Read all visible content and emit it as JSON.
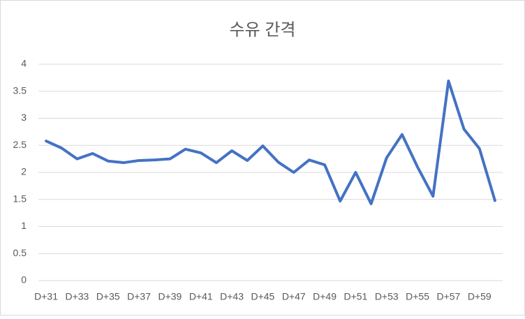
{
  "chart_data": {
    "type": "line",
    "title": "수유 간격",
    "categories": [
      "D+31",
      null,
      "D+33",
      null,
      "D+35",
      null,
      "D+37",
      null,
      "D+39",
      null,
      "D+41",
      null,
      "D+43",
      null,
      "D+45",
      null,
      "D+47",
      null,
      "D+49",
      null,
      "D+51",
      null,
      "D+53",
      null,
      "D+55",
      null,
      "D+57",
      null,
      "D+59",
      null
    ],
    "series": [
      {
        "name": "수유 간격",
        "color": "#4472c4",
        "values": [
          2.58,
          2.45,
          2.25,
          2.35,
          2.21,
          2.18,
          2.22,
          2.23,
          2.25,
          2.43,
          2.36,
          2.18,
          2.4,
          2.22,
          2.49,
          2.19,
          2.0,
          2.23,
          2.14,
          1.47,
          2.0,
          1.42,
          2.27,
          2.7,
          2.1,
          1.56,
          3.69,
          2.8,
          2.44,
          1.48
        ]
      }
    ],
    "ylim": [
      0,
      4
    ],
    "yticks": [
      0,
      0.5,
      1,
      1.5,
      2,
      2.5,
      3,
      3.5,
      4
    ],
    "grid": true
  }
}
